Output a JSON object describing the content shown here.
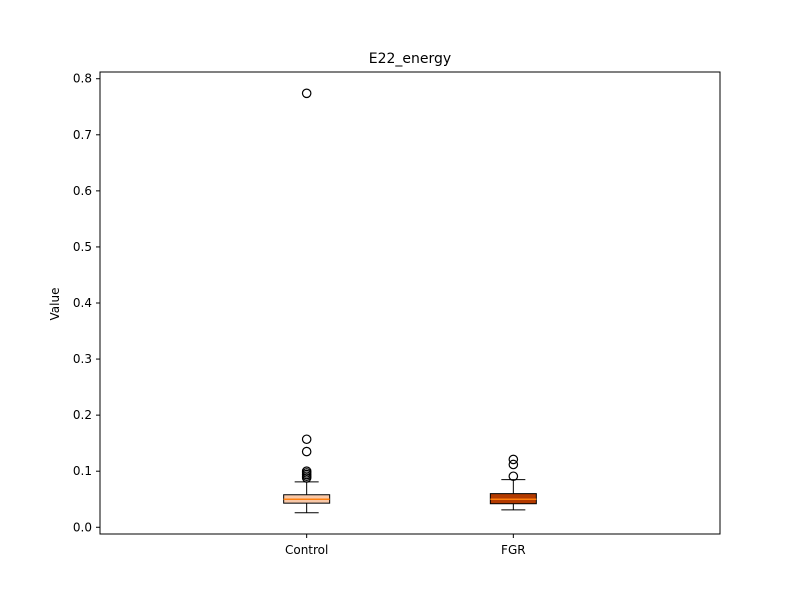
{
  "chart_data": {
    "type": "box",
    "title": "E22_energy",
    "xlabel": "",
    "ylabel": "Value",
    "ylim": [
      -0.012,
      0.812
    ],
    "yticks": [
      0.0,
      0.1,
      0.2,
      0.3,
      0.4,
      0.5,
      0.6,
      0.7,
      0.8
    ],
    "ytick_labels": [
      "0.0",
      "0.1",
      "0.2",
      "0.3",
      "0.4",
      "0.5",
      "0.6",
      "0.7",
      "0.8"
    ],
    "grid": false,
    "categories": [
      "Control",
      "FGR"
    ],
    "boxes": [
      {
        "name": "Control",
        "whisker_low": 0.026,
        "q1": 0.043,
        "median": 0.05,
        "q3": 0.058,
        "whisker_high": 0.081,
        "outliers": [
          0.088,
          0.091,
          0.094,
          0.097,
          0.1,
          0.135,
          0.157,
          0.774
        ],
        "fill": "#f8c8a8",
        "median_color": "#ff7f0e"
      },
      {
        "name": "FGR",
        "whisker_low": 0.031,
        "q1": 0.042,
        "median": 0.05,
        "q3": 0.06,
        "whisker_high": 0.085,
        "outliers": [
          0.091,
          0.112,
          0.121
        ],
        "fill": "#b23a00",
        "median_color": "#ff7f0e"
      }
    ]
  }
}
